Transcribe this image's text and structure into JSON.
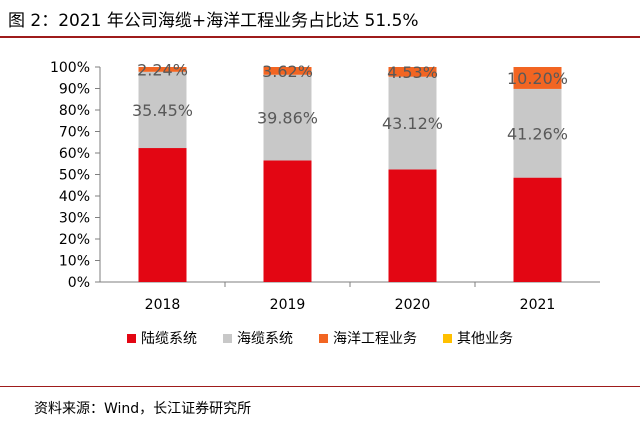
{
  "title": "图 2：2021 年公司海缆+海洋工程业务占比达 51.5%",
  "source": "资料来源：Wind，长江证券研究所",
  "chart_data": {
    "type": "bar",
    "stacked": true,
    "categories": [
      "2018",
      "2019",
      "2020",
      "2021"
    ],
    "series": [
      {
        "name": "陆缆系统",
        "color": "#e30613",
        "values": [
          62.31,
          56.52,
          52.35,
          48.54
        ]
      },
      {
        "name": "海缆系统",
        "color": "#c8c8c8",
        "values": [
          35.45,
          39.86,
          43.12,
          41.26
        ]
      },
      {
        "name": "海洋工程业务",
        "color": "#f26522",
        "values": [
          2.24,
          3.62,
          4.53,
          10.2
        ]
      },
      {
        "name": "其他业务",
        "color": "#ffc000",
        "values": [
          0,
          0,
          0,
          0
        ]
      }
    ],
    "data_labels": [
      {
        "series": "海缆系统",
        "labels": [
          "35.45%",
          "39.86%",
          "43.12%",
          "41.26%"
        ]
      },
      {
        "series": "海洋工程业务",
        "labels": [
          "2.24%",
          "3.62%",
          "4.53%",
          "10.20%"
        ]
      }
    ],
    "yticks": [
      "0%",
      "10%",
      "20%",
      "30%",
      "40%",
      "50%",
      "60%",
      "70%",
      "80%",
      "90%",
      "100%"
    ],
    "ylim": [
      0,
      100
    ],
    "legend_position": "bottom",
    "grid": false
  }
}
